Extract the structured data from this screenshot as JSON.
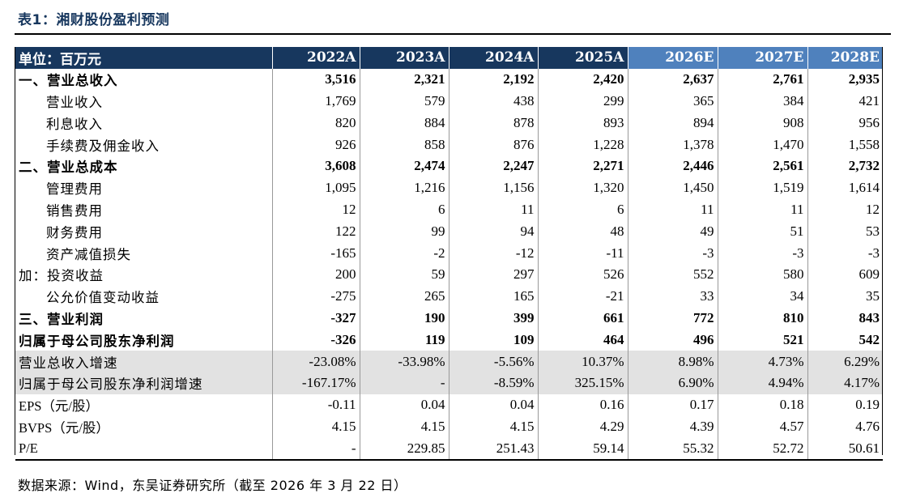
{
  "title": "表1：湘财股份盈利预测",
  "header": {
    "unit_label": "单位：百万元",
    "years": [
      "2022A",
      "2023A",
      "2024A",
      "2025A",
      "2026E",
      "2027E",
      "2028E"
    ]
  },
  "rows": [
    {
      "label": "一、营业总收入",
      "values": [
        "3,516",
        "2,321",
        "2,192",
        "2,420",
        "2,637",
        "2,761",
        "2,935"
      ]
    },
    {
      "label": "营业收入",
      "values": [
        "1,769",
        "579",
        "438",
        "299",
        "365",
        "384",
        "421"
      ]
    },
    {
      "label": "利息收入",
      "values": [
        "820",
        "884",
        "878",
        "893",
        "894",
        "908",
        "956"
      ]
    },
    {
      "label": "手续费及佣金收入",
      "values": [
        "926",
        "858",
        "876",
        "1,228",
        "1,378",
        "1,470",
        "1,558"
      ]
    },
    {
      "label": "二、营业总成本",
      "values": [
        "3,608",
        "2,474",
        "2,247",
        "2,271",
        "2,446",
        "2,561",
        "2,732"
      ]
    },
    {
      "label": "管理费用",
      "values": [
        "1,095",
        "1,216",
        "1,156",
        "1,320",
        "1,450",
        "1,519",
        "1,614"
      ]
    },
    {
      "label": "销售费用",
      "values": [
        "12",
        "6",
        "11",
        "6",
        "11",
        "11",
        "12"
      ]
    },
    {
      "label": "财务费用",
      "values": [
        "122",
        "99",
        "94",
        "48",
        "49",
        "51",
        "53"
      ]
    },
    {
      "label": "资产减值损失",
      "values": [
        "-165",
        "-2",
        "-12",
        "-11",
        "-3",
        "-3",
        "-3"
      ]
    },
    {
      "label": "加：投资收益",
      "values": [
        "200",
        "59",
        "297",
        "526",
        "552",
        "580",
        "609"
      ]
    },
    {
      "label": "公允价值变动收益",
      "values": [
        "-275",
        "265",
        "165",
        "-21",
        "33",
        "34",
        "35"
      ]
    },
    {
      "label": "三、营业利润",
      "values": [
        "-327",
        "190",
        "399",
        "661",
        "772",
        "810",
        "843"
      ]
    },
    {
      "label": "归属于母公司股东净利润",
      "values": [
        "-326",
        "119",
        "109",
        "464",
        "496",
        "521",
        "542"
      ]
    },
    {
      "label": "营业总收入增速",
      "values": [
        "-23.08%",
        "-33.98%",
        "-5.56%",
        "10.37%",
        "8.98%",
        "4.73%",
        "6.29%"
      ]
    },
    {
      "label": "归属于母公司股东净利润增速",
      "values": [
        "-167.17%",
        "-",
        "-8.59%",
        "325.15%",
        "6.90%",
        "4.94%",
        "4.17%"
      ]
    },
    {
      "label": "EPS（元/股）",
      "values": [
        "-0.11",
        "0.04",
        "0.04",
        "0.16",
        "0.17",
        "0.18",
        "0.19"
      ]
    },
    {
      "label": "BVPS（元/股）",
      "values": [
        "4.15",
        "4.15",
        "4.15",
        "4.29",
        "4.39",
        "4.57",
        "4.76"
      ]
    },
    {
      "label": "P/E",
      "values": [
        "-",
        "229.85",
        "251.43",
        "59.14",
        "55.32",
        "52.72",
        "50.61"
      ]
    }
  ],
  "source": "数据来源：Wind，东吴证券研究所（截至 2026 年 3 月 22 日）"
}
